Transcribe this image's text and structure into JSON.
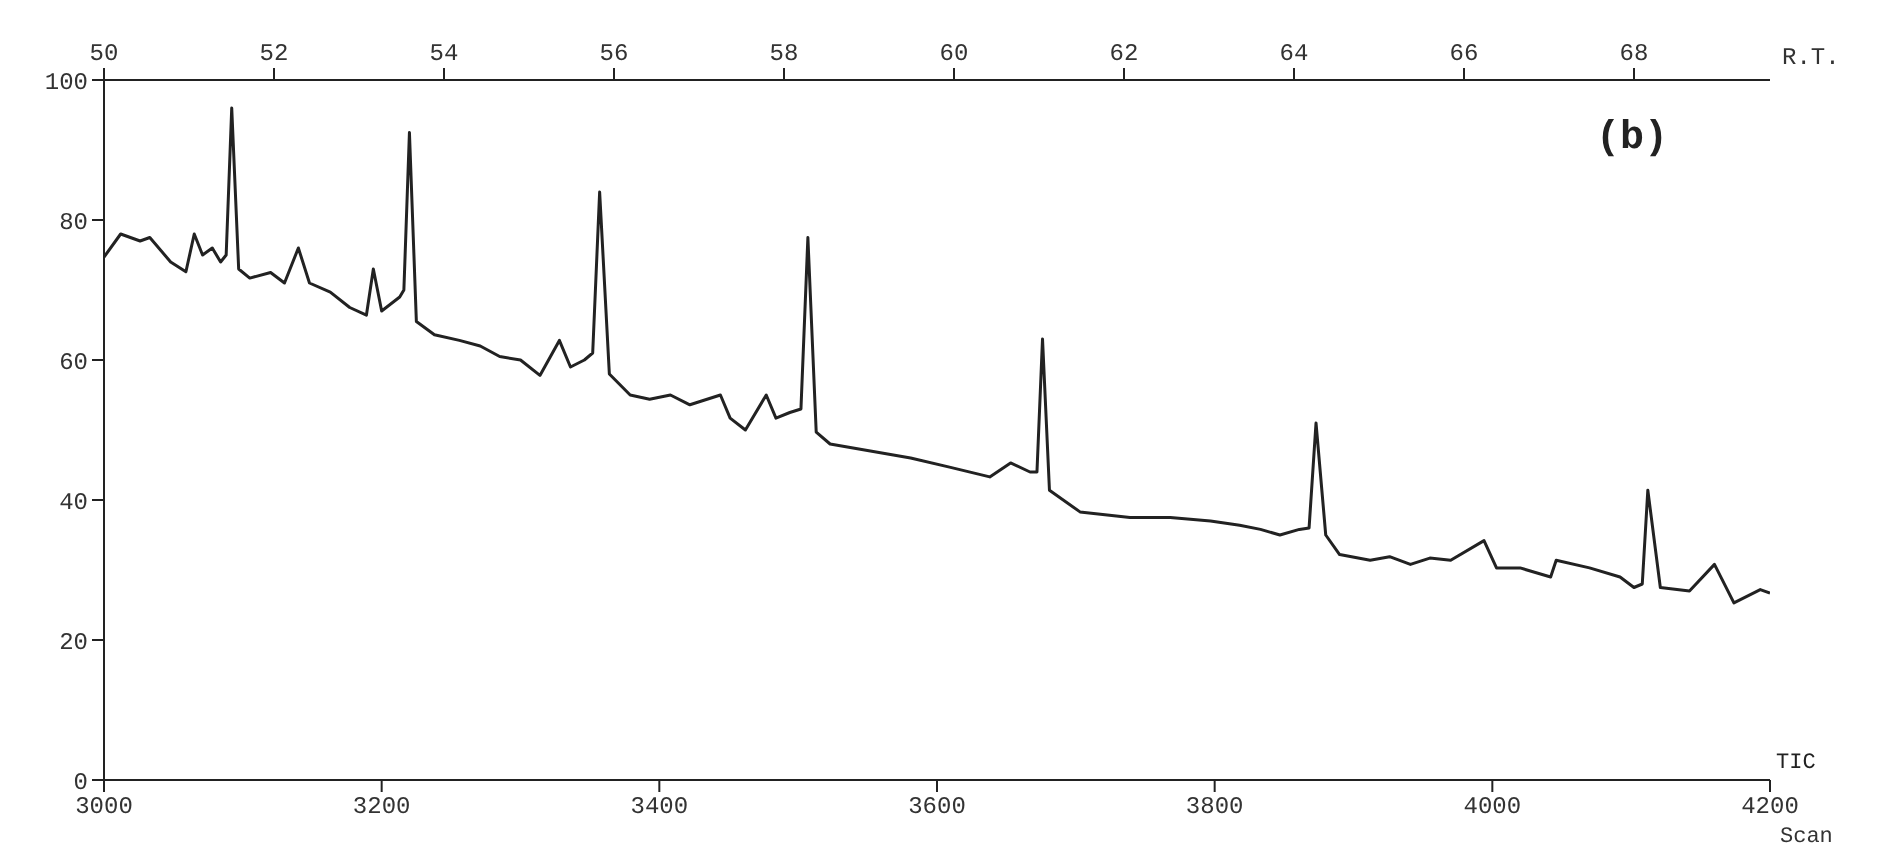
{
  "chart_data": {
    "type": "line",
    "xlabel": "Scan",
    "x2label": "R.T.",
    "annotations": [
      "(b)",
      "TIC"
    ],
    "xlim": [
      3000,
      4200
    ],
    "xticks": [
      3000,
      3200,
      3400,
      3600,
      3800,
      4000,
      4200
    ],
    "x2lim": [
      50,
      69.6
    ],
    "x2ticks": [
      50,
      52,
      54,
      56,
      58,
      60,
      62,
      64,
      66,
      68
    ],
    "ylim": [
      0,
      100
    ],
    "yticks": [
      0,
      20,
      40,
      60,
      80,
      100
    ],
    "grid": false,
    "marker": "none",
    "line_style": "solid",
    "series": [
      {
        "color": "#222222",
        "x": [
          3000,
          3012,
          3026,
          3033,
          3048,
          3059,
          3065,
          3071,
          3078,
          3084,
          3088,
          3092,
          3097,
          3105,
          3120,
          3130,
          3140,
          3148,
          3163,
          3177,
          3189,
          3194,
          3200,
          3213,
          3216,
          3220,
          3225,
          3238,
          3256,
          3271,
          3285,
          3300,
          3314,
          3328,
          3336,
          3346,
          3352,
          3357,
          3364,
          3379,
          3393,
          3408,
          3422,
          3444,
          3451,
          3462,
          3477,
          3484,
          3494,
          3502,
          3507,
          3513,
          3523,
          3552,
          3581,
          3609,
          3638,
          3653,
          3667,
          3672,
          3676,
          3681,
          3703,
          3739,
          3768,
          3797,
          3818,
          3833,
          3847,
          3861,
          3868,
          3873,
          3880,
          3890,
          3912,
          3926,
          3941,
          3955,
          3970,
          3994,
          4003,
          4020,
          4042,
          4046,
          4070,
          4092,
          4102,
          4108,
          4112,
          4121,
          4142,
          4160,
          4174,
          4193,
          4200
        ],
        "values": [
          74.7,
          78,
          77,
          77.5,
          74,
          72.6,
          78,
          75,
          76,
          74,
          75,
          96,
          73,
          71.7,
          72.5,
          71,
          76,
          71,
          69.7,
          67.5,
          66.4,
          73,
          67,
          69,
          70,
          92.5,
          65.5,
          63.6,
          62.8,
          62,
          60.5,
          60,
          57.8,
          62.8,
          59,
          60,
          61,
          84,
          58,
          55,
          54.4,
          55,
          53.6,
          55,
          51.7,
          50,
          55,
          51.7,
          52.5,
          53,
          77.5,
          49.7,
          48,
          47,
          46,
          44.7,
          43.3,
          45.3,
          44,
          44,
          63,
          41.4,
          38.3,
          37.5,
          37.5,
          37,
          36.4,
          35.8,
          35,
          35.8,
          36,
          51,
          35,
          32.2,
          31.4,
          31.9,
          30.8,
          31.7,
          31.4,
          34.2,
          30.3,
          30.3,
          29,
          31.4,
          30.3,
          29,
          27.5,
          28,
          41.4,
          27.5,
          27,
          30.8,
          25.3,
          27.2,
          26.7
        ]
      }
    ]
  }
}
